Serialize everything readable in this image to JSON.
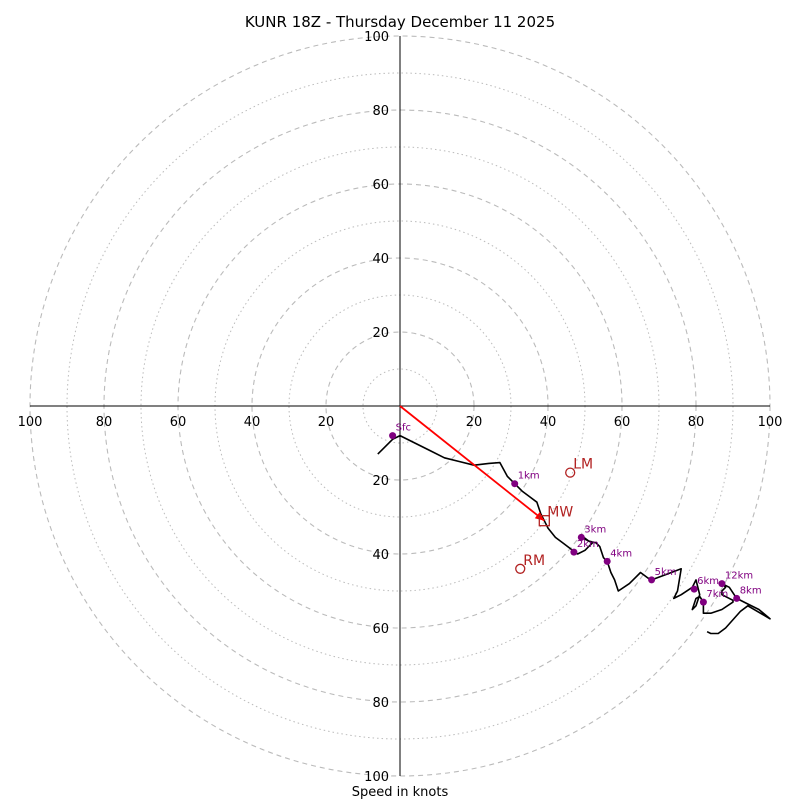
{
  "chart_data": {
    "type": "hodograph",
    "title": "KUNR 18Z - Thursday December 11 2025",
    "xlabel": "Speed in knots",
    "axis_range_knots": [
      -100,
      100
    ],
    "ring_major_step": 20,
    "ring_minor_step": 10,
    "tick_labels": {
      "x": [
        "100",
        "80",
        "60",
        "40",
        "20",
        "20",
        "40",
        "60",
        "80",
        "100"
      ],
      "y": [
        "100",
        "80",
        "60",
        "40",
        "20",
        "20",
        "40",
        "60",
        "80",
        "100"
      ]
    },
    "colors": {
      "trace": "#000000",
      "levels": "#800080",
      "motion": "#b22222",
      "mean_wind_vector": "#ff0000",
      "rings": "#bbbbbb"
    },
    "hodograph_trace_uv": [
      [
        -6,
        -13
      ],
      [
        -2,
        -9
      ],
      [
        0,
        -8
      ],
      [
        4,
        -10
      ],
      [
        8,
        -12
      ],
      [
        12,
        -14
      ],
      [
        16,
        -15
      ],
      [
        20,
        -16
      ],
      [
        24,
        -15.5
      ],
      [
        27,
        -15.3
      ],
      [
        29,
        -19
      ],
      [
        31,
        -21
      ],
      [
        33,
        -23
      ],
      [
        35,
        -24.5
      ],
      [
        37,
        -26
      ],
      [
        38,
        -29
      ],
      [
        39,
        -31
      ],
      [
        40,
        -33
      ],
      [
        42,
        -35.5
      ],
      [
        44,
        -37
      ],
      [
        46,
        -38.5
      ],
      [
        48,
        -40
      ],
      [
        50,
        -39
      ],
      [
        51,
        -38
      ],
      [
        52,
        -37
      ],
      [
        50,
        -36
      ],
      [
        49,
        -35
      ],
      [
        51,
        -36.5
      ],
      [
        53,
        -37
      ],
      [
        54,
        -38
      ],
      [
        55,
        -41
      ],
      [
        56,
        -42
      ],
      [
        57,
        -45
      ],
      [
        58,
        -47
      ],
      [
        59,
        -50
      ],
      [
        62,
        -48
      ],
      [
        65,
        -45
      ],
      [
        67,
        -46.5
      ],
      [
        68,
        -47
      ],
      [
        72,
        -45.5
      ],
      [
        76,
        -44
      ],
      [
        75,
        -50
      ],
      [
        74,
        -52
      ],
      [
        76,
        -51
      ],
      [
        79,
        -49
      ],
      [
        80,
        -47
      ],
      [
        81,
        -51
      ],
      [
        80,
        -54
      ],
      [
        79,
        -55
      ],
      [
        80,
        -52
      ],
      [
        81,
        -51.5
      ],
      [
        82,
        -53
      ],
      [
        82,
        -56
      ],
      [
        84,
        -56
      ],
      [
        87,
        -55
      ],
      [
        90,
        -53
      ],
      [
        90,
        -52.5
      ],
      [
        87,
        -51
      ],
      [
        87,
        -50
      ],
      [
        88,
        -49
      ],
      [
        87,
        -48
      ],
      [
        89,
        -49
      ],
      [
        91,
        -52
      ],
      [
        94,
        -53.5
      ],
      [
        97,
        -55
      ],
      [
        100,
        -57.5
      ],
      [
        94,
        -54
      ],
      [
        92,
        -55.5
      ],
      [
        88,
        -60
      ],
      [
        86,
        -61.5
      ],
      [
        84,
        -61.5
      ],
      [
        83,
        -61
      ]
    ],
    "height_levels": [
      {
        "label": "Sfc",
        "u": -2,
        "v": -8
      },
      {
        "label": "1km",
        "u": 31,
        "v": -21
      },
      {
        "label": "2km",
        "u": 47,
        "v": -39.5
      },
      {
        "label": "3km",
        "u": 49,
        "v": -35.5
      },
      {
        "label": "4km",
        "u": 56,
        "v": -42
      },
      {
        "label": "5km",
        "u": 68,
        "v": -47
      },
      {
        "label": "6km",
        "u": 79.5,
        "v": -49.5
      },
      {
        "label": "7km",
        "u": 82,
        "v": -53
      },
      {
        "label": "8km",
        "u": 91,
        "v": -52
      },
      {
        "label": "12km",
        "u": 87,
        "v": -48
      }
    ],
    "storm_motions": [
      {
        "label": "LM",
        "u": 46,
        "v": -18,
        "marker": "circle"
      },
      {
        "label": "MW",
        "u": 39,
        "v": -31,
        "marker": "square"
      },
      {
        "label": "RM",
        "u": 32.5,
        "v": -44,
        "marker": "circle"
      }
    ],
    "mean_wind_vector": {
      "from": [
        0,
        0
      ],
      "to": [
        39,
        -31
      ]
    }
  }
}
